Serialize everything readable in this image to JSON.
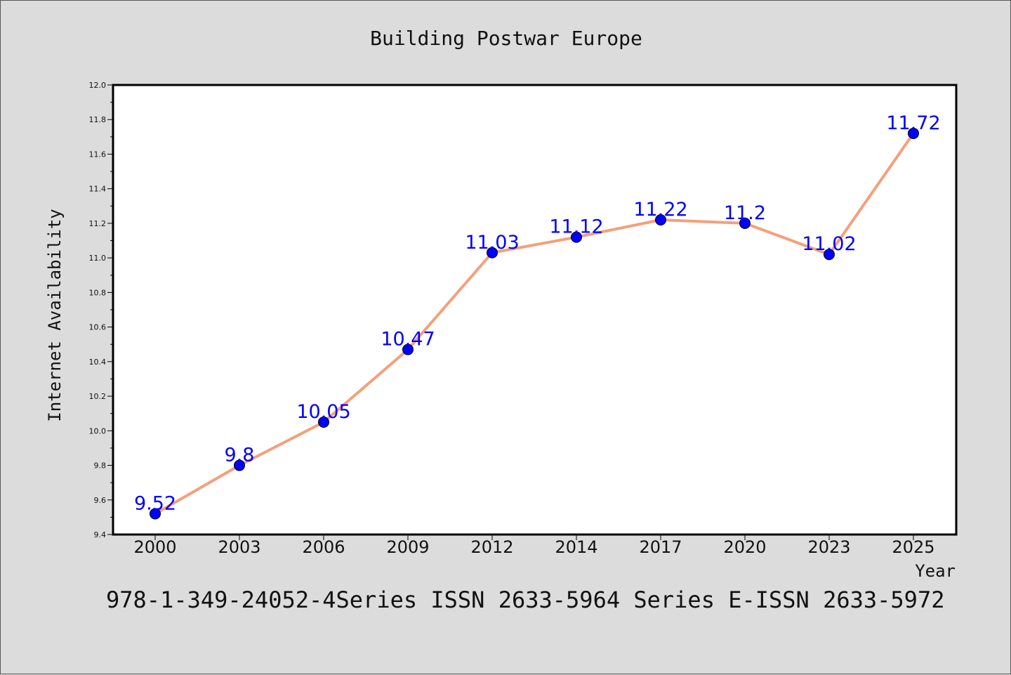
{
  "chart_data": {
    "type": "line",
    "title": "Building Postwar Europe",
    "xlabel": "Year",
    "ylabel": "Internet Availability",
    "categories": [
      "2000",
      "2003",
      "2006",
      "2009",
      "2012",
      "2014",
      "2017",
      "2020",
      "2023",
      "2025"
    ],
    "series": [
      {
        "values": [
          9.52,
          9.8,
          10.05,
          10.47,
          11.03,
          11.12,
          11.22,
          11.2,
          11.02,
          11.72
        ],
        "labels": [
          "9.52",
          "9.8",
          "10.05",
          "10.47",
          "11.03",
          "11.12",
          "11.22",
          "11.2",
          "11.02",
          "11.72"
        ],
        "line_color": "#f4a07c",
        "marker_color": "#0000ff"
      }
    ],
    "ylim": [
      9.4,
      12.0
    ],
    "yticks": [
      "9.4",
      "9.6",
      "9.8",
      "10.0",
      "10.2",
      "10.4",
      "10.6",
      "10.8",
      "11.0",
      "11.2",
      "11.4",
      "11.6",
      "11.8",
      "12.0"
    ],
    "grid": false,
    "legend": "none"
  },
  "footer": {
    "text": "978-1-349-24052-4Series ISSN 2633-5964 Series E-ISSN 2633-5972"
  }
}
